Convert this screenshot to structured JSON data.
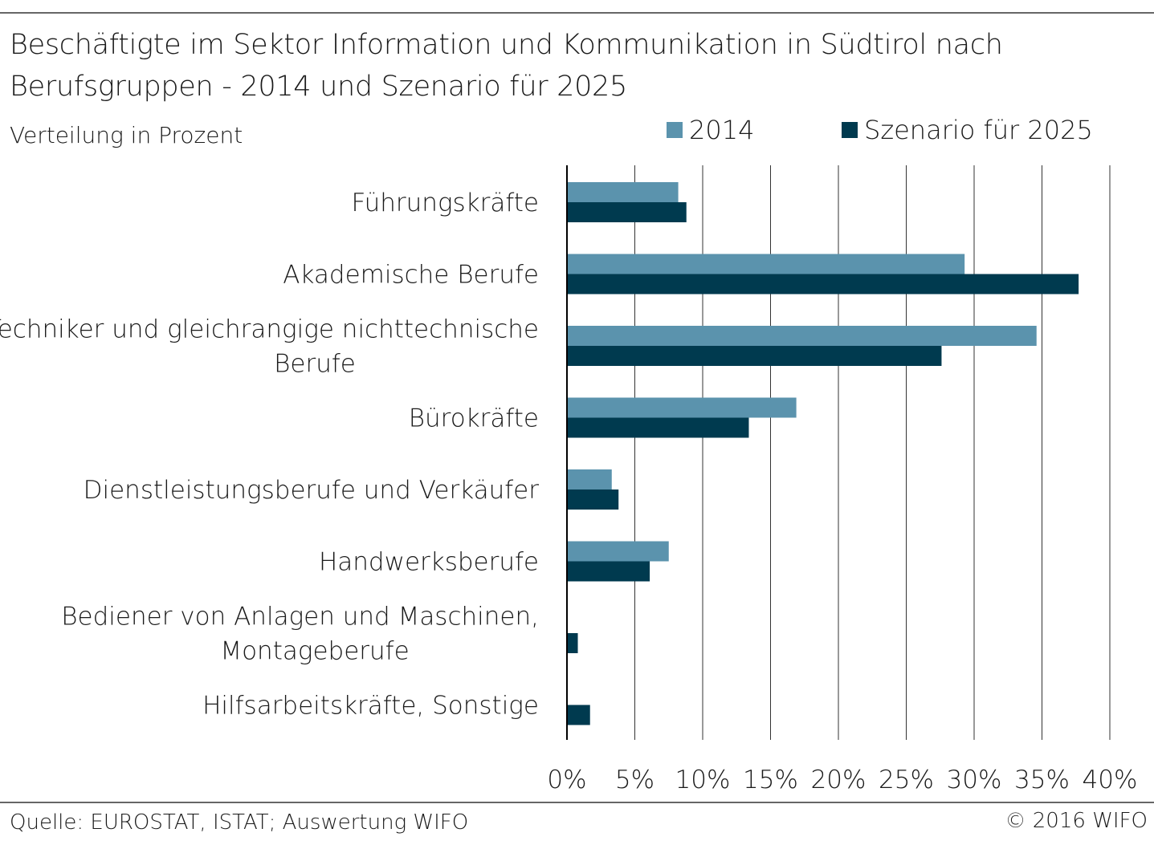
{
  "header": {
    "title_line1": "Beschäftigte im Sektor Information und Kommunikation in Südtirol nach",
    "title_line2": "Berufsgruppen - 2014 und Szenario für 2025",
    "subtitle": "Verteilung in Prozent"
  },
  "footer": {
    "source": "Quelle: EUROSTAT, ISTAT; Auswertung WIFO",
    "copyright": "© 2016 WIFO"
  },
  "colors": {
    "series_2014": "#5b93ad",
    "series_2025": "#003a4f",
    "grid": "#333333",
    "axis": "#000000"
  },
  "chart_data": {
    "type": "bar",
    "orientation": "horizontal",
    "categories": [
      [
        "Führungskräfte"
      ],
      [
        "Akademische Berufe"
      ],
      [
        "Techniker und gleichrangige nichttechnische",
        "Berufe"
      ],
      [
        "Bürokräfte"
      ],
      [
        "Dienstleistungsberufe und Verkäufer"
      ],
      [
        "Handwerksberufe"
      ],
      [
        "Bediener von Anlagen und Maschinen,",
        "Montageberufe"
      ],
      [
        "Hilfsarbeitskräfte, Sonstige"
      ]
    ],
    "series": [
      {
        "name": "2014",
        "values": [
          8.2,
          29.3,
          34.6,
          16.9,
          3.3,
          7.5,
          0.0,
          0.0
        ]
      },
      {
        "name": "Szenario für 2025",
        "values": [
          8.8,
          37.7,
          27.6,
          13.4,
          3.8,
          6.1,
          0.8,
          1.7
        ]
      }
    ],
    "xlim": [
      0,
      40
    ],
    "xticks": [
      0,
      5,
      10,
      15,
      20,
      25,
      30,
      35,
      40
    ],
    "tick_suffix": "%",
    "grid": "vertical",
    "legend_position": "top-right"
  }
}
